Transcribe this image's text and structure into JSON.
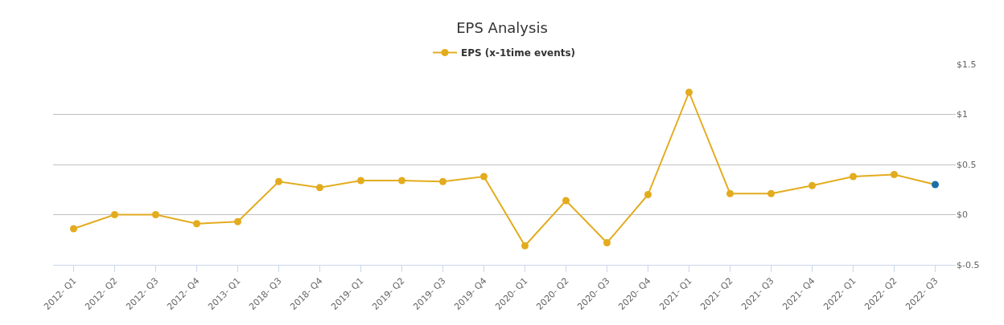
{
  "chart_data": {
    "type": "line",
    "title": "EPS Analysis",
    "categories": [
      "2012- Q1",
      "2012- Q2",
      "2012- Q3",
      "2012- Q4",
      "2013- Q1",
      "2018- Q3",
      "2018- Q4",
      "2019- Q1",
      "2019- Q2",
      "2019- Q3",
      "2019- Q4",
      "2020- Q1",
      "2020- Q2",
      "2020- Q3",
      "2020- Q4",
      "2021- Q1",
      "2021- Q2",
      "2021- Q3",
      "2021- Q4",
      "2022- Q1",
      "2022- Q2",
      "2022- Q3"
    ],
    "series": [
      {
        "name": "EPS (x-1time events)",
        "color": "#e3ac1e",
        "colors": [
          "#e3ac1e",
          "#e3ac1e",
          "#e3ac1e",
          "#e3ac1e",
          "#e3ac1e",
          "#e3ac1e",
          "#e3ac1e",
          "#e3ac1e",
          "#e3ac1e",
          "#e3ac1e",
          "#e3ac1e",
          "#e3ac1e",
          "#e3ac1e",
          "#e3ac1e",
          "#e3ac1e",
          "#e3ac1e",
          "#e3ac1e",
          "#e3ac1e",
          "#e3ac1e",
          "#e3ac1e",
          "#e3ac1e",
          "#1a6fa8"
        ],
        "values": [
          -0.14,
          0,
          0,
          -0.09,
          -0.07,
          0.33,
          0.27,
          0.34,
          0.34,
          0.33,
          0.38,
          -0.31,
          0.14,
          -0.28,
          0.2,
          1.22,
          0.21,
          0.21,
          0.29,
          0.38,
          0.4,
          0.3
        ]
      }
    ],
    "ylim": [
      -0.5,
      1.5
    ],
    "yticks": [
      {
        "value": -0.5,
        "label": "$-0.5"
      },
      {
        "value": 0,
        "label": "$0"
      },
      {
        "value": 0.5,
        "label": "$0.5"
      },
      {
        "value": 1,
        "label": "$1"
      },
      {
        "value": 1.5,
        "label": "$1.5"
      }
    ],
    "grid": "y",
    "legend": "top",
    "marker": "circle",
    "line_style": "solid"
  }
}
